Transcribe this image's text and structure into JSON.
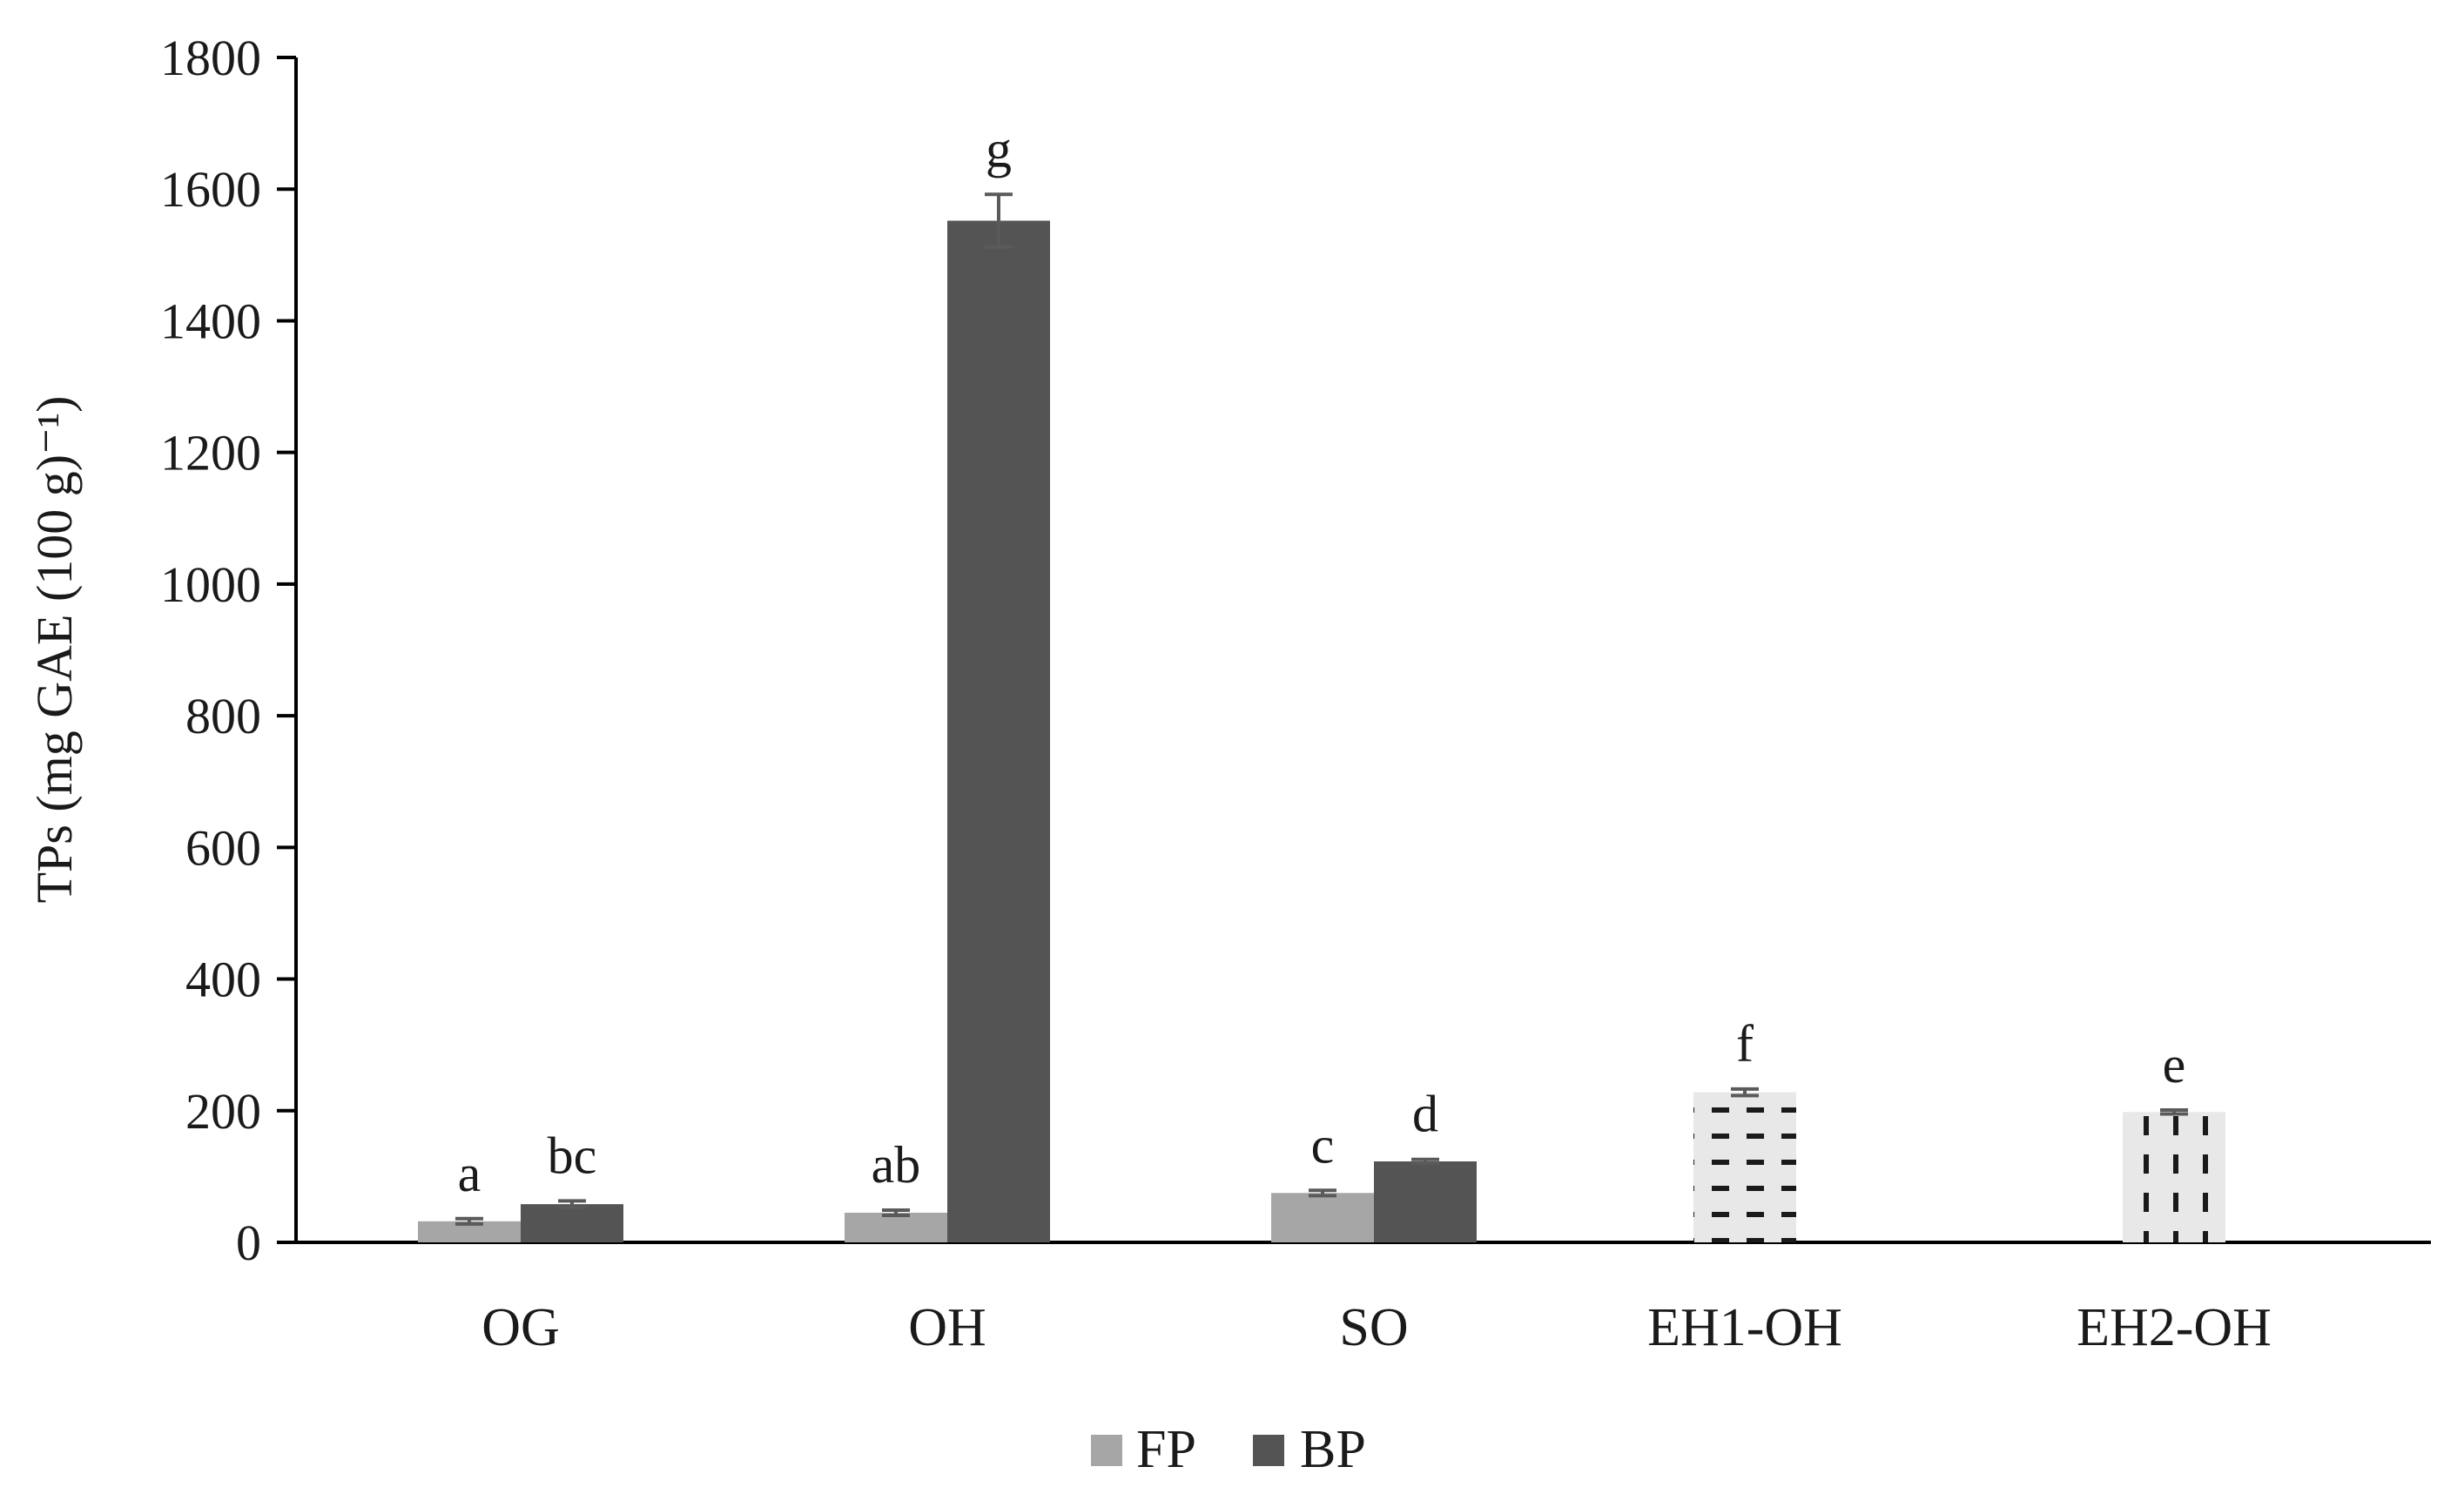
{
  "chart_data": {
    "type": "bar",
    "title": "",
    "xlabel": "",
    "ylabel": "TPs (mg GAE (100 g)⁻¹)",
    "ylim": [
      0,
      1800
    ],
    "yticks": [
      0,
      200,
      400,
      600,
      800,
      1000,
      1200,
      1400,
      1600,
      1800
    ],
    "grid": false,
    "legend_position": "bottom",
    "categories": [
      "OG",
      "OH",
      "SO",
      "EH1-OH",
      "EH2-OH"
    ],
    "series": [
      {
        "name": "FP",
        "color": "#a6a6a6",
        "values": [
          32,
          45,
          75,
          null,
          null
        ],
        "errors": [
          4,
          4,
          4,
          null,
          null
        ],
        "significance": [
          "a",
          "ab",
          "c",
          "",
          ""
        ]
      },
      {
        "name": "BP",
        "color": "#545454",
        "values": [
          58,
          1552,
          123,
          null,
          null
        ],
        "errors": [
          5,
          40,
          3,
          null,
          null
        ],
        "significance": [
          "bc",
          "g",
          "d",
          "",
          ""
        ]
      }
    ],
    "extra_bars": [
      {
        "category": "EH1-OH",
        "value": 228,
        "error": 5,
        "significance": "f",
        "pattern": "horizontal-dashes",
        "fill": "#e8e8e8"
      },
      {
        "category": "EH2-OH",
        "value": 198,
        "error": 3,
        "significance": "e",
        "pattern": "vertical-dashes",
        "fill": "#e8e8e8"
      }
    ]
  }
}
